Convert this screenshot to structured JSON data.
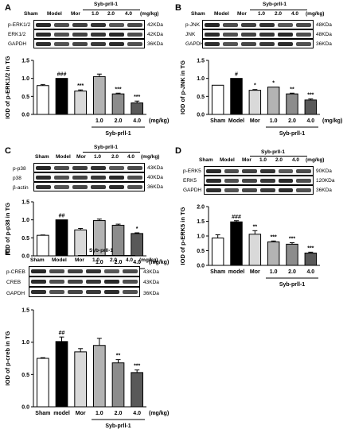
{
  "panels": [
    {
      "label": "A",
      "group": "Syb-prll-1",
      "header": [
        "Sham",
        "Model",
        "Mor",
        "1.0",
        "2.0",
        "4.0",
        "(mg/kg)"
      ],
      "rows": [
        {
          "name": "p-ERK1/2",
          "kda": "42KDa"
        },
        {
          "name": "ERK1/2",
          "kda": "42KDa"
        },
        {
          "name": "GAPDH",
          "kda": "36KDa"
        }
      ]
    },
    {
      "label": "B",
      "group": "Syb-prll-1",
      "header": [
        "Sham",
        "Model",
        "Mor",
        "1.0",
        "2.0",
        "4.0",
        "(mg/kg)"
      ],
      "rows": [
        {
          "name": "p-JNK",
          "kda": "48KDa"
        },
        {
          "name": "JNK",
          "kda": "48KDa"
        },
        {
          "name": "GAPDH",
          "kda": "36KDa"
        }
      ]
    },
    {
      "label": "C",
      "group": "Syb-prll-1",
      "header": [
        "Sham",
        "Model",
        "Mor",
        "1.0",
        "2.0",
        "4.0",
        "(mg/kg)"
      ],
      "rows": [
        {
          "name": "p-p38",
          "kda": "43KDa"
        },
        {
          "name": "p38",
          "kda": "40KDa"
        },
        {
          "name": "β-actin",
          "kda": "36KDa"
        }
      ]
    },
    {
      "label": "D",
      "group": "Syb-prll-1",
      "header": [
        "Sham",
        "Model",
        "Mor",
        "1.0",
        "2.0",
        "4.0",
        "(mg/kg)"
      ],
      "rows": [
        {
          "name": "p-ERK5",
          "kda": "90KDa"
        },
        {
          "name": "ERK5",
          "kda": "120KDa"
        },
        {
          "name": "GAPDH",
          "kda": "36KDa"
        }
      ]
    },
    {
      "label": "E",
      "group": "Syb-prll-1",
      "header": [
        "Sham",
        "Model",
        "Mor",
        "1.0",
        "2.0",
        "4.0",
        "(mg/kg)"
      ],
      "rows": [
        {
          "name": "p-CREB",
          "kda": "43KDa"
        },
        {
          "name": "CREB",
          "kda": "43KDa"
        },
        {
          "name": "GAPDH",
          "kda": "36KDa"
        }
      ]
    }
  ],
  "chart_data": [
    {
      "type": "bar",
      "panel": "A",
      "ylabel": "IOD of p-ERK1/2 in TG",
      "ylim": [
        0,
        1.5
      ],
      "yticks": [
        "0.0",
        "0.5",
        "1.0",
        "1.5"
      ],
      "categories": [
        "Sham",
        "Model",
        "Mor",
        "1.0",
        "2.0",
        "4.0"
      ],
      "tick_labels": [
        "",
        "",
        "",
        "1.0",
        "2.0",
        "4.0"
      ],
      "values": [
        0.8,
        1.0,
        0.65,
        1.05,
        0.57,
        0.32
      ],
      "errors": [
        0.03,
        0.0,
        0.03,
        0.07,
        0.02,
        0.05
      ],
      "sig": [
        "",
        "###",
        "***",
        "",
        "***",
        "***"
      ],
      "unit": "(mg/kg)",
      "group": "Syb-prll-1",
      "colors": [
        "#ffffff",
        "#000000",
        "#d9d9d9",
        "#b3b3b3",
        "#8c8c8c",
        "#595959"
      ]
    },
    {
      "type": "bar",
      "panel": "B",
      "ylabel": "IOD of p-JNK in TG",
      "ylim": [
        0,
        1.5
      ],
      "yticks": [
        "0.0",
        "0.5",
        "1.0",
        "1.5"
      ],
      "categories": [
        "Sham",
        "Model",
        "Mor",
        "1.0",
        "2.0",
        "4.0"
      ],
      "tick_labels": [
        "Sham",
        "Model",
        "Mor",
        "1.0",
        "2.0",
        "4.0"
      ],
      "values": [
        0.81,
        1.0,
        0.67,
        0.76,
        0.57,
        0.4
      ],
      "errors": [
        0.0,
        0.0,
        0.02,
        0.0,
        0.02,
        0.03
      ],
      "sig": [
        "",
        "#",
        "*",
        "*",
        "**",
        "***"
      ],
      "unit": "(mg/kg)",
      "group": "Syb-prll-1",
      "colors": [
        "#ffffff",
        "#000000",
        "#d9d9d9",
        "#b3b3b3",
        "#8c8c8c",
        "#595959"
      ]
    },
    {
      "type": "bar",
      "panel": "C",
      "ylabel": "IOD of p-p38 in TG",
      "ylim": [
        0,
        1.5
      ],
      "yticks": [
        "0.0",
        "0.5",
        "1.0",
        "1.5"
      ],
      "categories": [
        "Sham",
        "Model",
        "Mor",
        "1.0",
        "2.0",
        "4.0"
      ],
      "tick_labels": [
        "",
        "",
        "",
        "1.0",
        "2.0",
        "4.0"
      ],
      "values": [
        0.57,
        1.0,
        0.72,
        0.98,
        0.85,
        0.62
      ],
      "errors": [
        0.01,
        0.0,
        0.04,
        0.04,
        0.03,
        0.02
      ],
      "sig": [
        "",
        "##",
        "",
        "",
        "",
        "*"
      ],
      "unit": "(mg/kg)",
      "group": "Syb-prll-1",
      "colors": [
        "#ffffff",
        "#000000",
        "#d9d9d9",
        "#b3b3b3",
        "#8c8c8c",
        "#595959"
      ]
    },
    {
      "type": "bar",
      "panel": "D",
      "ylabel": "IOD of p-ERK5 in TG",
      "ylim": [
        0,
        2.0
      ],
      "yticks": [
        "0.0",
        "0.5",
        "1.0",
        "1.5",
        "2.0"
      ],
      "categories": [
        "Sham",
        "model",
        "Mor",
        "1.0",
        "2.0",
        "4.0"
      ],
      "tick_labels": [
        "Sham",
        "model",
        "Mor",
        "1.0",
        "2.0",
        "4.0"
      ],
      "values": [
        0.93,
        1.48,
        1.06,
        0.8,
        0.72,
        0.42
      ],
      "errors": [
        0.11,
        0.04,
        0.12,
        0.03,
        0.05,
        0.03
      ],
      "sig": [
        "",
        "###",
        "**",
        "***",
        "***",
        "***"
      ],
      "unit": "",
      "group": "Syb-prll-1",
      "colors": [
        "#ffffff",
        "#000000",
        "#d9d9d9",
        "#b3b3b3",
        "#8c8c8c",
        "#595959"
      ]
    },
    {
      "type": "bar",
      "panel": "E",
      "ylabel": "IOD of p-creb in TG",
      "ylim": [
        0,
        1.5
      ],
      "yticks": [
        "0.0",
        "0.5",
        "1.0",
        "1.5"
      ],
      "categories": [
        "Sham",
        "model",
        "Mor",
        "1.0",
        "2.0",
        "4.0"
      ],
      "tick_labels": [
        "Sham",
        "model",
        "Mor",
        "1.0",
        "2.0",
        "4.0"
      ],
      "values": [
        0.75,
        1.01,
        0.85,
        0.95,
        0.68,
        0.53
      ],
      "errors": [
        0.01,
        0.07,
        0.05,
        0.11,
        0.05,
        0.04
      ],
      "sig": [
        "",
        "##",
        "",
        "",
        "**",
        "***"
      ],
      "unit": "(mg/kg)",
      "group": "Syb-prll-1",
      "colors": [
        "#ffffff",
        "#000000",
        "#d9d9d9",
        "#b3b3b3",
        "#8c8c8c",
        "#595959"
      ]
    }
  ]
}
